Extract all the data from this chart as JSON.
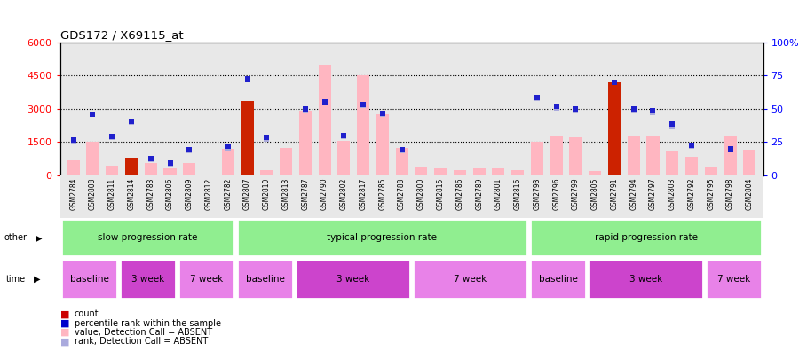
{
  "title": "GDS172 / X69115_at",
  "samples": [
    "GSM2784",
    "GSM2808",
    "GSM2811",
    "GSM2814",
    "GSM2783",
    "GSM2806",
    "GSM2809",
    "GSM2812",
    "GSM2782",
    "GSM2807",
    "GSM2810",
    "GSM2813",
    "GSM2787",
    "GSM2790",
    "GSM2802",
    "GSM2817",
    "GSM2785",
    "GSM2788",
    "GSM2800",
    "GSM2815",
    "GSM2786",
    "GSM2789",
    "GSM2801",
    "GSM2816",
    "GSM2793",
    "GSM2796",
    "GSM2799",
    "GSM2805",
    "GSM2791",
    "GSM2794",
    "GSM2797",
    "GSM2803",
    "GSM2792",
    "GSM2795",
    "GSM2798",
    "GSM2804"
  ],
  "pink_bars": [
    700,
    1500,
    450,
    750,
    550,
    300,
    550,
    50,
    1200,
    3300,
    230,
    1250,
    2900,
    5000,
    1550,
    4500,
    2750,
    1250,
    400,
    350,
    230,
    350,
    300,
    250,
    1500,
    1800,
    1700,
    200,
    3800,
    1800,
    1800,
    1100,
    850,
    400,
    1800,
    1150
  ],
  "count_bars": [
    0,
    0,
    0,
    800,
    0,
    0,
    0,
    0,
    0,
    3350,
    0,
    0,
    0,
    0,
    0,
    0,
    0,
    0,
    0,
    0,
    0,
    0,
    0,
    0,
    0,
    0,
    0,
    0,
    4200,
    0,
    0,
    0,
    0,
    0,
    0,
    0
  ],
  "blue_squares": [
    1600,
    2750,
    1750,
    2450,
    750,
    550,
    1150,
    null,
    1300,
    4350,
    1700,
    null,
    3000,
    3300,
    1800,
    3200,
    2800,
    1150,
    null,
    null,
    null,
    null,
    null,
    null,
    3500,
    3100,
    3000,
    null,
    4200,
    3000,
    2900,
    2300,
    1350,
    null,
    1200,
    null
  ],
  "light_blue_squares": [
    1550,
    2750,
    1700,
    2400,
    700,
    500,
    1100,
    null,
    1250,
    null,
    1650,
    null,
    2950,
    3250,
    1750,
    3150,
    2750,
    1100,
    null,
    null,
    null,
    null,
    null,
    null,
    3450,
    3050,
    2950,
    null,
    null,
    2950,
    2850,
    2250,
    1300,
    null,
    1150,
    null
  ],
  "group_boundaries": [
    [
      0,
      9,
      "slow progression rate"
    ],
    [
      9,
      24,
      "typical progression rate"
    ],
    [
      24,
      36,
      "rapid progression rate"
    ]
  ],
  "time_groups": [
    [
      0,
      3,
      "baseline",
      "#E882E8"
    ],
    [
      3,
      6,
      "3 week",
      "#CC44CC"
    ],
    [
      6,
      9,
      "7 week",
      "#E882E8"
    ],
    [
      9,
      12,
      "baseline",
      "#E882E8"
    ],
    [
      12,
      18,
      "3 week",
      "#CC44CC"
    ],
    [
      18,
      24,
      "7 week",
      "#E882E8"
    ],
    [
      24,
      27,
      "baseline",
      "#E882E8"
    ],
    [
      27,
      33,
      "3 week",
      "#CC44CC"
    ],
    [
      33,
      36,
      "7 week",
      "#E882E8"
    ]
  ],
  "ylim_left": [
    0,
    6000
  ],
  "ylim_right": [
    0,
    100
  ],
  "yticks_left": [
    0,
    1500,
    3000,
    4500,
    6000
  ],
  "ytick_labels_left": [
    "0",
    "1500",
    "3000",
    "4500",
    "6000"
  ],
  "yticks_right": [
    0,
    25,
    50,
    75,
    100
  ],
  "ytick_labels_right": [
    "0",
    "25",
    "50",
    "75",
    "100%"
  ],
  "hlines": [
    1500,
    3000,
    4500
  ],
  "bg_color": "#e8e8e8",
  "bar_width": 0.65,
  "light_green": "#90EE90",
  "legend_items": [
    {
      "color": "#CC0000",
      "label": "count"
    },
    {
      "color": "#0000CC",
      "label": "percentile rank within the sample"
    },
    {
      "color": "#FFB6C1",
      "label": "value, Detection Call = ABSENT"
    },
    {
      "color": "#AAAADD",
      "label": "rank, Detection Call = ABSENT"
    }
  ]
}
